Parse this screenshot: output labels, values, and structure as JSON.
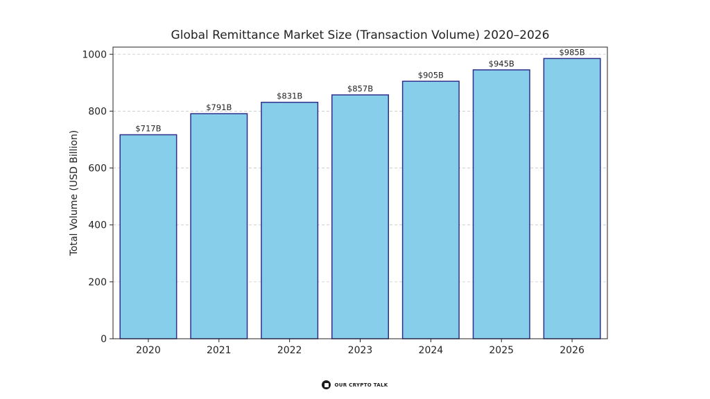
{
  "chart_data": {
    "type": "bar",
    "title": "Global Remittance Market Size (Transaction Volume) 2020–2026",
    "xlabel": "",
    "ylabel": "Total Volume (USD Billion)",
    "categories": [
      "2020",
      "2021",
      "2022",
      "2023",
      "2024",
      "2025",
      "2026"
    ],
    "values": [
      717,
      791,
      831,
      857,
      905,
      945,
      985
    ],
    "data_labels": [
      "$717B",
      "$791B",
      "$831B",
      "$857B",
      "$905B",
      "$945B",
      "$985B"
    ],
    "ylim": [
      0,
      1000
    ],
    "yticks": [
      0,
      200,
      400,
      600,
      800,
      1000
    ],
    "grid": "horizontal dashed",
    "bar_color": "#87ceeb",
    "bar_edge_color": "#2e2e8a"
  },
  "footer": {
    "brand_text": "OUR CRYPTO TALK",
    "logo_icon": "our-crypto-talk-logo-icon"
  }
}
